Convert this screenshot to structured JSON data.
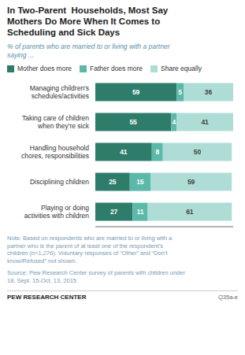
{
  "chart_data": {
    "type": "bar",
    "orientation": "horizontal",
    "stacked": true,
    "data_labels": true,
    "tick_labels": "y",
    "title": "In Two-Parent  Households, Most Say\nMothers Do More When It Comes to\nScheduling and Sick Days",
    "subtitle": "% of parents who are married to or living with a partner\nsaying ...",
    "categories": [
      "Managing children's\nschedules/activities",
      "Taking care of children\nwhen they're sick",
      "Handling household\nchores, responsibilities",
      "Disciplining children",
      "Playing or doing\nactivities with children"
    ],
    "series": [
      {
        "name": "Mother does more",
        "color": "#2e7d6b",
        "values": [
          59,
          55,
          41,
          25,
          27
        ]
      },
      {
        "name": "Father does more",
        "color": "#5cb8a8",
        "values": [
          5,
          4,
          8,
          15,
          11
        ]
      },
      {
        "name": "Share equally",
        "color": "#aeddd6",
        "values": [
          36,
          41,
          50,
          59,
          61
        ]
      }
    ],
    "xlim": [
      0,
      100
    ],
    "annotations": [
      "Note: Based on respondents who are married to or living with a\npartner who is the parent of at least one of the respondent’s\nchildren (n=1,276). Voluntary responses of “Other” and “Don’t\nknow/Refused” not shown.",
      "Source: Pew Research Center survey of parents with children under\n18, Sept. 15-Oct. 13, 2015",
      "PEW RESEARCH CENTER",
      "Q35a-e"
    ]
  }
}
